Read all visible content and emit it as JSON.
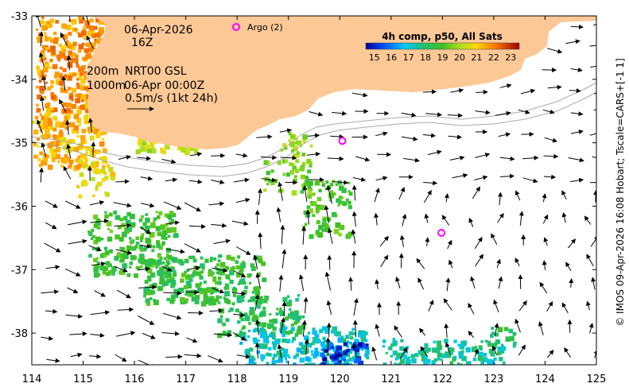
{
  "map": {
    "lon_range": [
      114,
      125
    ],
    "lat_range": [
      -38.5,
      -33
    ],
    "x_ticks": [
      "114",
      "115",
      "116",
      "117",
      "118",
      "119",
      "120",
      "121",
      "122",
      "123",
      "124",
      "125"
    ],
    "y_ticks": [
      "-33",
      "-34",
      "-35",
      "-36",
      "-37",
      "-38"
    ],
    "land_color": "#fcc896"
  },
  "annotations": {
    "date": "06-Apr-2026",
    "hour": "16Z",
    "contour_200": "200m",
    "contour_1000": "1000m",
    "nrt": "NRT00 GSL",
    "nrt_time": "06-Apr 00:00Z",
    "scale": "0.5m/s (1kt 24h)"
  },
  "argo": {
    "legend": "Argo (2)",
    "color": "#ff00ff",
    "floats": [
      {
        "lon": 120.05,
        "lat": -34.97
      },
      {
        "lon": 121.98,
        "lat": -36.42
      }
    ]
  },
  "colorbar": {
    "title": "4h comp, p50, All Sats",
    "min": 14.5,
    "max": 23.5,
    "ticks": [
      "15",
      "16",
      "17",
      "18",
      "19",
      "20",
      "21",
      "22",
      "23"
    ]
  },
  "credit": "© IMOS 09-Apr-2026 16:08 Hobart; Tscale=CARS+[-1 1]"
}
